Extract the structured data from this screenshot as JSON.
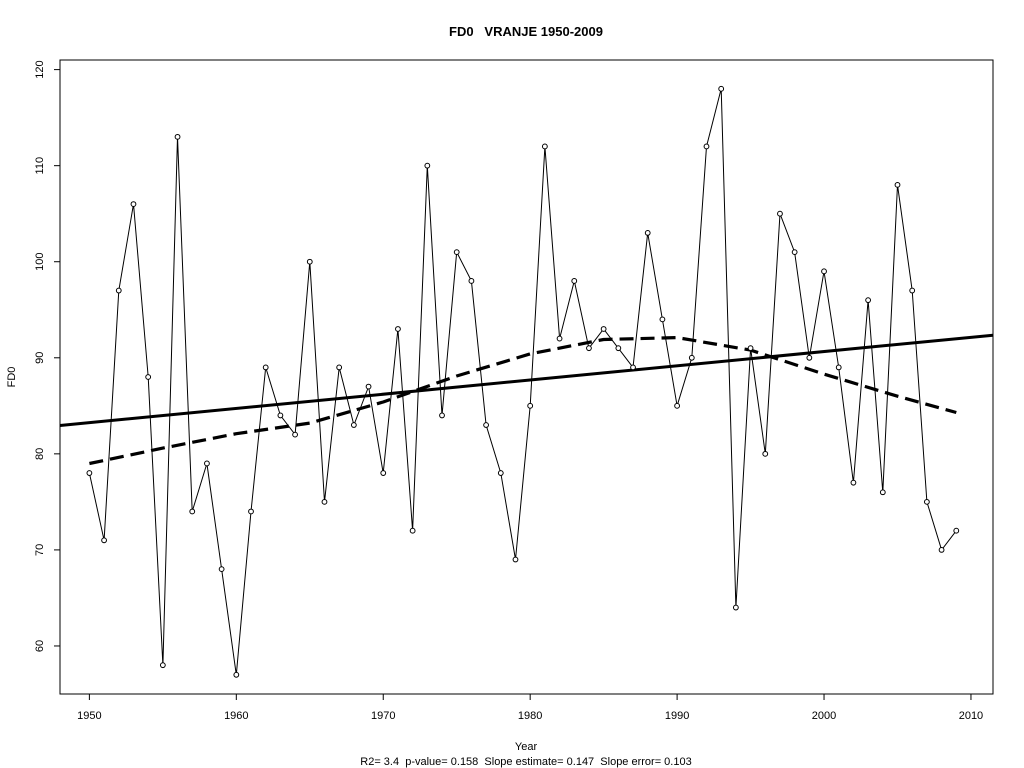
{
  "chart_data": {
    "type": "line",
    "title": "FD0   VRANJE 1950-2009",
    "xlabel": "Year",
    "ylabel": "FD0",
    "footer": "R2= 3.4  p-value= 0.158  Slope estimate= 0.147  Slope error= 0.103",
    "xlim": [
      1948,
      2011.5
    ],
    "ylim": [
      55,
      121
    ],
    "x_ticks": [
      1950,
      1960,
      1970,
      1980,
      1990,
      2000,
      2010
    ],
    "y_ticks": [
      60,
      70,
      80,
      90,
      100,
      110,
      120
    ],
    "grid": false,
    "series": [
      {
        "style": "observed",
        "x": [
          1950,
          1951,
          1952,
          1953,
          1954,
          1955,
          1956,
          1957,
          1958,
          1959,
          1960,
          1961,
          1962,
          1963,
          1964,
          1965,
          1966,
          1967,
          1968,
          1969,
          1970,
          1971,
          1972,
          1973,
          1974,
          1975,
          1976,
          1977,
          1978,
          1979,
          1980,
          1981,
          1982,
          1983,
          1984,
          1985,
          1986,
          1987,
          1988,
          1989,
          1990,
          1991,
          1992,
          1993,
          1994,
          1995,
          1996,
          1997,
          1998,
          1999,
          2000,
          2001,
          2002,
          2003,
          2004,
          2005,
          2006,
          2007,
          2008,
          2009
        ],
        "values": [
          78,
          71,
          97,
          106,
          88,
          58,
          113,
          74,
          79,
          68,
          57,
          74,
          89,
          84,
          82,
          100,
          75,
          89,
          83,
          87,
          78,
          93,
          72,
          110,
          84,
          101,
          98,
          83,
          78,
          69,
          85,
          112,
          92,
          98,
          91,
          93,
          91,
          89,
          103,
          94,
          85,
          90,
          112,
          118,
          64,
          91,
          80,
          105,
          101,
          90,
          99,
          89,
          77,
          96,
          76,
          108,
          97,
          75,
          70,
          72
        ]
      },
      {
        "style": "linear-trend",
        "x": [
          1948,
          2011.5
        ],
        "values": [
          82.95,
          92.35
        ]
      },
      {
        "style": "smooth-trend",
        "x": [
          1950,
          1955,
          1960,
          1965,
          1970,
          1975,
          1980,
          1985,
          1990,
          1995,
          2000,
          2005,
          2009
        ],
        "values": [
          79.0,
          80.6,
          82.1,
          83.2,
          85.4,
          88.1,
          90.4,
          91.9,
          92.1,
          90.8,
          88.3,
          86.0,
          84.3
        ]
      }
    ]
  }
}
